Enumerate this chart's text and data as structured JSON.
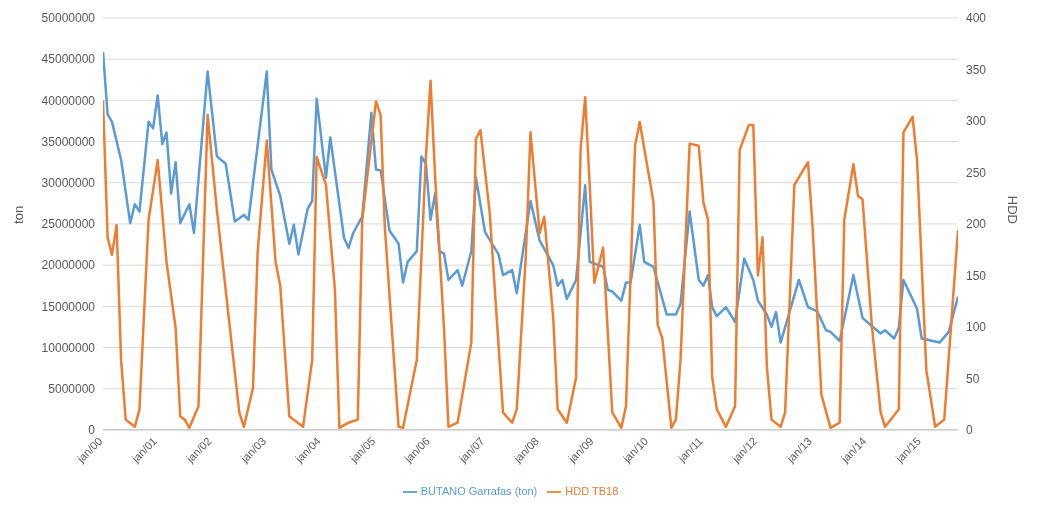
{
  "chart_data": {
    "type": "line",
    "ylabel": "ton",
    "y2label": "HDD",
    "xlim": [
      "2000-01",
      "2015-09"
    ],
    "xticks": [
      {
        "value": "2000-01",
        "label": "jan/00"
      },
      {
        "value": "2001-01",
        "label": "jan/01"
      },
      {
        "value": "2002-01",
        "label": "jan/02"
      },
      {
        "value": "2003-01",
        "label": "jan/03"
      },
      {
        "value": "2004-01",
        "label": "jan/04"
      },
      {
        "value": "2005-01",
        "label": "jan/05"
      },
      {
        "value": "2006-01",
        "label": "jan/06"
      },
      {
        "value": "2007-01",
        "label": "jan/07"
      },
      {
        "value": "2008-01",
        "label": "jan/08"
      },
      {
        "value": "2009-01",
        "label": "jan/09"
      },
      {
        "value": "2010-01",
        "label": "jan/10"
      },
      {
        "value": "2011-01",
        "label": "jan/11"
      },
      {
        "value": "2012-01",
        "label": "jan/12"
      },
      {
        "value": "2013-01",
        "label": "jan/13"
      },
      {
        "value": "2014-01",
        "label": "jan/14"
      },
      {
        "value": "2015-01",
        "label": "jan/15"
      }
    ],
    "ylim": [
      0,
      50000000
    ],
    "yticks": [
      0,
      5000000,
      10000000,
      15000000,
      20000000,
      25000000,
      30000000,
      35000000,
      40000000,
      45000000,
      50000000
    ],
    "y2lim": [
      0,
      400
    ],
    "y2ticks": [
      0,
      50,
      100,
      150,
      200,
      250,
      300,
      350,
      400
    ],
    "grid": "y",
    "legend": "bottom",
    "marker": "none",
    "line_style": "solid",
    "series": [
      {
        "name": "BUTANO Garrafas (ton)",
        "color": "#5b9bd5",
        "x": [
          "2000-01",
          "2000-02",
          "2000-03",
          "2000-05",
          "2000-07",
          "2000-08",
          "2000-09",
          "2000-11",
          "2000-12",
          "2001-01",
          "2001-02",
          "2001-03",
          "2001-04",
          "2001-05",
          "2001-06",
          "2001-08",
          "2001-09",
          "2001-12",
          "2002-02",
          "2002-04",
          "2002-06",
          "2002-08",
          "2002-09",
          "2002-10",
          "2003-01",
          "2003-02",
          "2003-04",
          "2003-06",
          "2003-07",
          "2003-08",
          "2003-10",
          "2003-11",
          "2003-12",
          "2004-02",
          "2004-03",
          "2004-06",
          "2004-07",
          "2004-08",
          "2004-10",
          "2004-12",
          "2005-01",
          "2005-02",
          "2005-04",
          "2005-06",
          "2005-07",
          "2005-08",
          "2005-10",
          "2005-11",
          "2005-12",
          "2006-01",
          "2006-02",
          "2006-03",
          "2006-04",
          "2006-05",
          "2006-07",
          "2006-08",
          "2006-10",
          "2006-11",
          "2007-01",
          "2007-04",
          "2007-05",
          "2007-07",
          "2007-08",
          "2007-11",
          "2008-01",
          "2008-04",
          "2008-05",
          "2008-06",
          "2008-07",
          "2008-09",
          "2008-11",
          "2008-12",
          "2009-03",
          "2009-04",
          "2009-05",
          "2009-07",
          "2009-08",
          "2009-09",
          "2009-11",
          "2009-12",
          "2010-02",
          "2010-04",
          "2010-05",
          "2010-07",
          "2010-08",
          "2010-10",
          "2010-12",
          "2011-01",
          "2011-02",
          "2011-03",
          "2011-04",
          "2011-06",
          "2011-08",
          "2011-10",
          "2011-12",
          "2012-01",
          "2012-03",
          "2012-04",
          "2012-05",
          "2012-06",
          "2012-10",
          "2012-12",
          "2013-02",
          "2013-04",
          "2013-05",
          "2013-07",
          "2013-10",
          "2013-12",
          "2014-01",
          "2014-04",
          "2014-05",
          "2014-07",
          "2014-08",
          "2014-09",
          "2014-12",
          "2015-01",
          "2015-05",
          "2015-07",
          "2015-09"
        ],
        "values": [
          45900000,
          38300000,
          37400000,
          32800000,
          25100000,
          27400000,
          26500000,
          37400000,
          36600000,
          40600000,
          34700000,
          36100000,
          28700000,
          32500000,
          25100000,
          27400000,
          23900000,
          43500000,
          33200000,
          32300000,
          25300000,
          26100000,
          25500000,
          30000000,
          43500000,
          31600000,
          28400000,
          22600000,
          24900000,
          21300000,
          26800000,
          27800000,
          40200000,
          30600000,
          35500000,
          23300000,
          22100000,
          23900000,
          25900000,
          38500000,
          31600000,
          31500000,
          24200000,
          22600000,
          17900000,
          20400000,
          21700000,
          33200000,
          32300000,
          25500000,
          28700000,
          21700000,
          21400000,
          18200000,
          19400000,
          17500000,
          21700000,
          30600000,
          24000000,
          21300000,
          18800000,
          19400000,
          16600000,
          27800000,
          23000000,
          20000000,
          17500000,
          18200000,
          15900000,
          18200000,
          29700000,
          20400000,
          19800000,
          17000000,
          16800000,
          15700000,
          17900000,
          17900000,
          24900000,
          20400000,
          19800000,
          15900000,
          14000000,
          14000000,
          15300000,
          26500000,
          18200000,
          17500000,
          18800000,
          14900000,
          13800000,
          14900000,
          13100000,
          20800000,
          18200000,
          15700000,
          14000000,
          12500000,
          14300000,
          10600000,
          18200000,
          14900000,
          14400000,
          12100000,
          11900000,
          10800000,
          18800000,
          13600000,
          13100000,
          11700000,
          12100000,
          11100000,
          12400000,
          18200000,
          14700000,
          11100000,
          10600000,
          11900000,
          16200000
        ]
      },
      {
        "name": "HDD TB18",
        "color": "#ed7d31",
        "axis": "y2",
        "x": [
          "2000-01",
          "2000-02",
          "2000-03",
          "2000-04",
          "2000-05",
          "2000-06",
          "2000-08",
          "2000-09",
          "2000-11",
          "2001-01",
          "2001-03",
          "2001-05",
          "2001-06",
          "2001-07",
          "2001-08",
          "2001-10",
          "2001-12",
          "2002-02",
          "2002-04",
          "2002-07",
          "2002-08",
          "2002-10",
          "2002-11",
          "2003-01",
          "2003-03",
          "2003-04",
          "2003-06",
          "2003-09",
          "2003-11",
          "2003-12",
          "2004-02",
          "2004-04",
          "2004-05",
          "2004-07",
          "2004-09",
          "2004-10",
          "2005-01",
          "2005-02",
          "2005-03",
          "2005-06",
          "2005-07",
          "2005-10",
          "2005-12",
          "2006-01",
          "2006-02",
          "2006-04",
          "2006-05",
          "2006-07",
          "2006-10",
          "2006-11",
          "2006-12",
          "2007-02",
          "2007-05",
          "2007-07",
          "2007-08",
          "2007-10",
          "2007-11",
          "2008-01",
          "2008-02",
          "2008-04",
          "2008-05",
          "2008-07",
          "2008-09",
          "2008-10",
          "2008-11",
          "2008-12",
          "2009-01",
          "2009-03",
          "2009-05",
          "2009-07",
          "2009-08",
          "2009-10",
          "2009-11",
          "2010-02",
          "2010-03",
          "2010-04",
          "2010-06",
          "2010-07",
          "2010-08",
          "2010-10",
          "2010-12",
          "2011-01",
          "2011-02",
          "2011-03",
          "2011-04",
          "2011-06",
          "2011-08",
          "2011-09",
          "2011-11",
          "2011-12",
          "2012-01",
          "2012-02",
          "2012-03",
          "2012-04",
          "2012-06",
          "2012-07",
          "2012-09",
          "2012-12",
          "2013-01",
          "2013-03",
          "2013-05",
          "2013-07",
          "2013-08",
          "2013-10",
          "2013-11",
          "2013-12",
          "2014-02",
          "2014-04",
          "2014-05",
          "2014-08",
          "2014-09",
          "2014-11",
          "2014-12",
          "2015-02",
          "2015-04",
          "2015-06",
          "2015-09"
        ],
        "values": [
          320,
          187,
          170,
          199,
          68,
          10,
          3,
          20,
          204,
          262,
          163,
          99,
          13,
          10,
          2,
          23,
          306,
          214,
          136,
          17,
          3,
          41,
          173,
          281,
          163,
          140,
          13,
          3,
          68,
          265,
          238,
          136,
          2,
          7,
          10,
          204,
          319,
          306,
          197,
          3,
          2,
          68,
          265,
          339,
          245,
          99,
          3,
          7,
          85,
          283,
          291,
          211,
          17,
          7,
          20,
          170,
          289,
          191,
          207,
          109,
          20,
          7,
          51,
          272,
          323,
          238,
          143,
          177,
          17,
          2,
          23,
          276,
          299,
          221,
          102,
          89,
          2,
          10,
          68,
          278,
          276,
          221,
          204,
          51,
          20,
          3,
          23,
          272,
          296,
          296,
          150,
          187,
          61,
          10,
          3,
          17,
          238,
          260,
          197,
          34,
          2,
          7,
          204,
          258,
          227,
          224,
          102,
          17,
          3,
          20,
          289,
          304,
          262,
          58,
          3,
          10,
          194
        ]
      }
    ]
  }
}
